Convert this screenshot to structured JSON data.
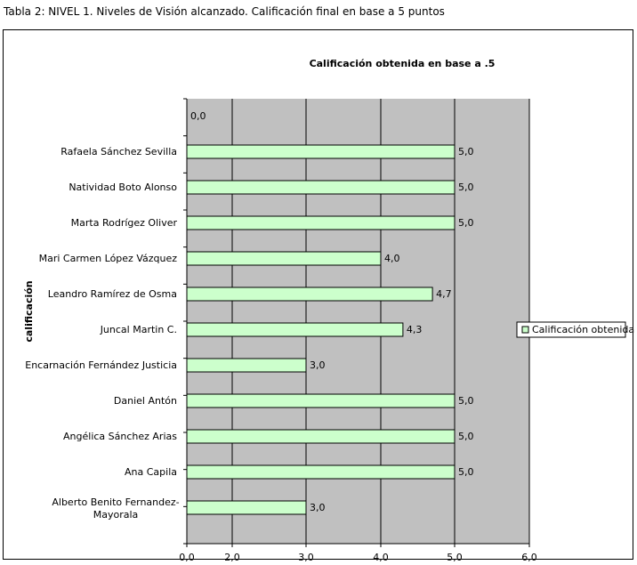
{
  "caption": "Tabla 2: NIVEL 1. Niveles de Visión alcanzado. Calificación final en base a 5 puntos",
  "chart_data": {
    "type": "bar",
    "orientation": "horizontal",
    "title": "Calificación obtenida en base a .5",
    "ylabel": "calificación",
    "xlabel": "",
    "categories": [
      "",
      "Rafaela Sánchez Sevilla",
      "Natividad Boto Alonso",
      "Marta Rodrígez Oliver",
      "Mari Carmen López Vázquez",
      "Leandro Ramírez de Osma",
      "Juncal Martin C.",
      "Encarnación Fernández Justicia",
      "Daniel Antón",
      "Angélica Sánchez Arias",
      "Ana Capila",
      "Alberto Benito Fernandez-Mayorala"
    ],
    "series": [
      {
        "name": "Calificación obtenida",
        "values": [
          0.0,
          5.0,
          5.0,
          5.0,
          4.0,
          4.7,
          4.3,
          3.0,
          5.0,
          5.0,
          5.0,
          3.0
        ]
      }
    ],
    "data_labels": [
      "0,0",
      "5,0",
      "5,0",
      "5,0",
      "4,0",
      "",
      "4,3",
      "3,0",
      "5,0",
      "5,0",
      "5,0",
      "3,0"
    ],
    "data_labels_fix": {
      "5": "4,7"
    },
    "x_ticks": [
      0,
      2,
      3,
      4,
      5,
      6
    ],
    "x_tick_labels": [
      "0,0",
      "2,0",
      "3,0",
      "4,0",
      "5,0",
      "6,0"
    ],
    "xlim": [
      0,
      6
    ],
    "grid": true,
    "legend": {
      "position": "right",
      "entries": [
        "Calificación obtenida"
      ]
    },
    "colors": {
      "bar": "#CCFFCC",
      "plot_bg": "#C0C0C0",
      "bar_border": "#000000"
    }
  }
}
